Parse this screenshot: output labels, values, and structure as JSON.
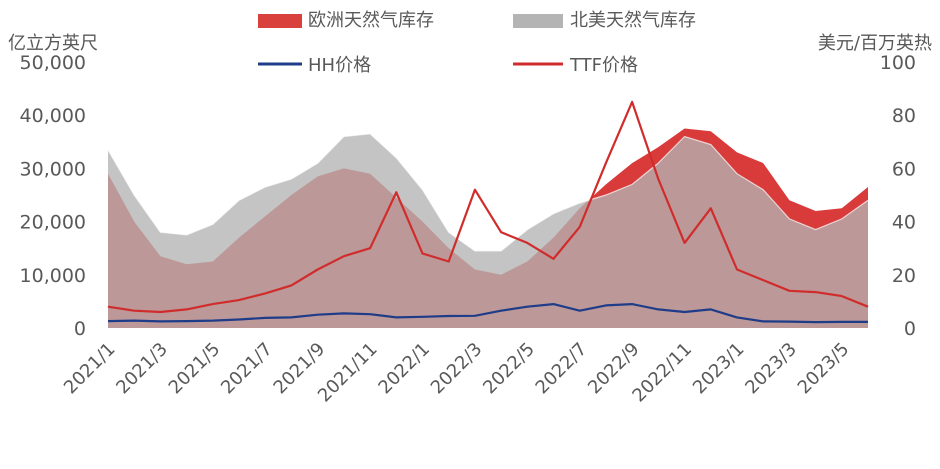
{
  "chart_data": {
    "type": "area",
    "left_unit": "亿立方英尺",
    "right_unit": "美元/百万英热",
    "y_left_lim": [
      0,
      50000
    ],
    "y_right_lim": [
      0,
      100
    ],
    "y_left_ticks": [
      "0",
      "10,000",
      "20,000",
      "30,000",
      "40,000",
      "50,000"
    ],
    "y_right_ticks": [
      "0",
      "20",
      "40",
      "60",
      "80",
      "100"
    ],
    "x_ticks": [
      "2021/1",
      "2021/3",
      "2021/5",
      "2021/7",
      "2021/9",
      "2021/11",
      "2022/1",
      "2022/3",
      "2022/5",
      "2022/7",
      "2022/9",
      "2022/11",
      "2023/1",
      "2023/3",
      "2023/5"
    ],
    "legend": {
      "eu_storage": "欧洲天然气库存",
      "na_storage": "北美天然气库存",
      "hh_price": "HH价格",
      "ttf_price": "TTF价格"
    },
    "colors": {
      "eu_storage_fill": "#d93a3a",
      "eu_storage_legend": "#d9413d",
      "na_storage_fill": "#b4b4b4",
      "hh_line": "#1f3c88",
      "ttf_line": "#d12c2c",
      "axis_text": "#595959"
    },
    "series": [
      {
        "name": "欧洲天然气库存",
        "axis": "left",
        "x": [
          "2021/1",
          "2021/2",
          "2021/3",
          "2021/4",
          "2021/5",
          "2021/6",
          "2021/7",
          "2021/8",
          "2021/9",
          "2021/10",
          "2021/11",
          "2021/12",
          "2022/1",
          "2022/2",
          "2022/3",
          "2022/4",
          "2022/5",
          "2022/6",
          "2022/7",
          "2022/8",
          "2022/9",
          "2022/10",
          "2022/11",
          "2022/12",
          "2023/1",
          "2023/2",
          "2023/3",
          "2023/4",
          "2023/5",
          "2023/6"
        ],
        "values": [
          29000,
          20000,
          13500,
          12000,
          12500,
          17000,
          21000,
          25000,
          28500,
          30000,
          29000,
          24500,
          20000,
          15000,
          11000,
          10000,
          12500,
          17000,
          22500,
          27000,
          31000,
          34000,
          37500,
          37000,
          33000,
          31000,
          24000,
          22000,
          22500,
          26500
        ]
      },
      {
        "name": "北美天然气库存",
        "axis": "left",
        "x": [
          "2021/1",
          "2021/2",
          "2021/3",
          "2021/4",
          "2021/5",
          "2021/6",
          "2021/7",
          "2021/8",
          "2021/9",
          "2021/10",
          "2021/11",
          "2021/12",
          "2022/1",
          "2022/2",
          "2022/3",
          "2022/4",
          "2022/5",
          "2022/6",
          "2022/7",
          "2022/8",
          "2022/9",
          "2022/10",
          "2022/11",
          "2022/12",
          "2023/1",
          "2023/2",
          "2023/3",
          "2023/4",
          "2023/5",
          "2023/6"
        ],
        "values": [
          33500,
          25000,
          18000,
          17500,
          19500,
          24000,
          26500,
          28000,
          31000,
          36000,
          36500,
          32000,
          26000,
          18000,
          14500,
          14500,
          18500,
          21500,
          23500,
          25000,
          27000,
          31000,
          36000,
          34500,
          29000,
          26000,
          20500,
          18500,
          20500,
          24000
        ]
      },
      {
        "name": "HH价格",
        "axis": "right",
        "x": [
          "2021/1",
          "2021/2",
          "2021/3",
          "2021/4",
          "2021/5",
          "2021/6",
          "2021/7",
          "2021/8",
          "2021/9",
          "2021/10",
          "2021/11",
          "2021/12",
          "2022/1",
          "2022/2",
          "2022/3",
          "2022/4",
          "2022/5",
          "2022/6",
          "2022/7",
          "2022/8",
          "2022/9",
          "2022/10",
          "2022/11",
          "2022/12",
          "2023/1",
          "2023/2",
          "2023/3",
          "2023/4",
          "2023/5",
          "2023/6"
        ],
        "values": [
          2.6,
          2.8,
          2.5,
          2.6,
          2.8,
          3.2,
          3.8,
          4.0,
          5.0,
          5.5,
          5.2,
          4.0,
          4.2,
          4.5,
          4.6,
          6.5,
          8.0,
          9.0,
          6.5,
          8.5,
          9.0,
          7.0,
          6.0,
          7.0,
          4.0,
          2.5,
          2.4,
          2.2,
          2.3,
          2.3
        ]
      },
      {
        "name": "TTF价格",
        "axis": "right",
        "x": [
          "2021/1",
          "2021/2",
          "2021/3",
          "2021/4",
          "2021/5",
          "2021/6",
          "2021/7",
          "2021/8",
          "2021/9",
          "2021/10",
          "2021/11",
          "2021/12",
          "2022/1",
          "2022/2",
          "2022/3",
          "2022/4",
          "2022/5",
          "2022/6",
          "2022/7",
          "2022/8",
          "2022/9",
          "2022/10",
          "2022/11",
          "2022/12",
          "2023/1",
          "2023/2",
          "2023/3",
          "2023/4",
          "2023/5",
          "2023/6"
        ],
        "values": [
          8,
          6.5,
          6,
          7,
          9,
          10.5,
          13,
          16,
          22,
          27,
          30,
          51,
          28,
          25,
          52,
          36,
          32,
          26,
          38,
          62,
          85,
          56,
          32,
          45,
          22,
          18,
          14,
          13.5,
          12,
          8
        ]
      }
    ]
  }
}
